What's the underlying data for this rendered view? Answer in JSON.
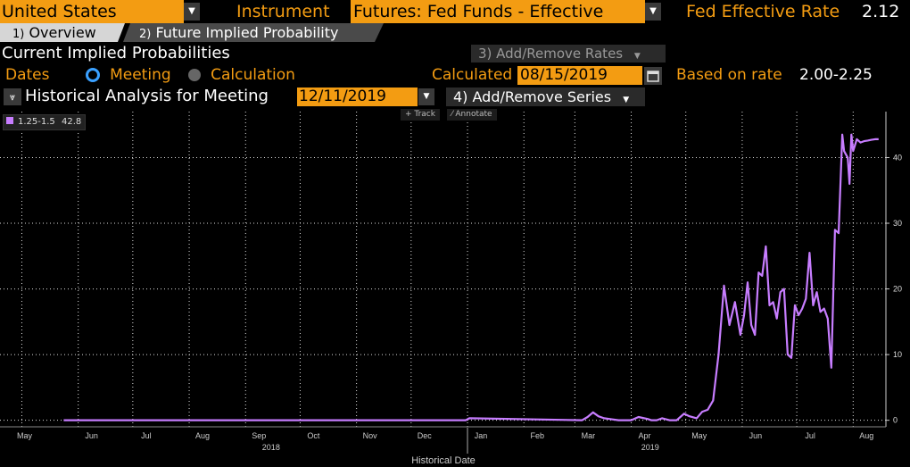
{
  "header": {
    "country": "United States",
    "instrument_label": "Instrument",
    "instrument": "Futures: Fed Funds - Effective",
    "rate_label": "Fed Effective Rate",
    "rate_value": "2.12"
  },
  "tabs": [
    {
      "num": "1)",
      "label": "Overview"
    },
    {
      "num": "2)",
      "label": "Future Implied Probability"
    }
  ],
  "section": {
    "title": "Current Implied Probabilities",
    "add_remove_rates": "3) Add/Remove Rates"
  },
  "dates_row": {
    "label": "Dates",
    "meeting": "Meeting",
    "calculation": "Calculation",
    "calculated_label": "Calculated",
    "calculated_date": "08/15/2019",
    "based_label": "Based on rate",
    "based_value": "2.00-2.25"
  },
  "historical": {
    "title": "Historical Analysis for Meeting",
    "meeting_date": "12/11/2019",
    "add_remove_series": "4) Add/Remove Series"
  },
  "toolbar": {
    "track": "Track",
    "annotate": "Annotate"
  },
  "colors": {
    "accent": "#f39c12",
    "series": "#c77dff",
    "background": "#000000"
  },
  "chart_data": {
    "type": "line",
    "xlabel": "Historical Date",
    "ylim": [
      -1,
      47
    ],
    "yticks": [
      0,
      10,
      20,
      30,
      40
    ],
    "grid": true,
    "x_ticks": [
      "May",
      "Jun",
      "Jul",
      "Aug",
      "Sep",
      "Oct",
      "Nov",
      "Dec",
      "Jan",
      "Feb",
      "Mar",
      "Apr",
      "May",
      "Jun",
      "Jul",
      "Aug"
    ],
    "year_labels": [
      "2018",
      "2019"
    ],
    "legend_placement": "top-left",
    "series": [
      {
        "name": "1.25-1.5",
        "last": "42.8",
        "x": [
          "2018-05-24",
          "2018-12-31",
          "2019-01-02",
          "2019-03-05",
          "2019-03-08",
          "2019-03-11",
          "2019-03-14",
          "2019-03-17",
          "2019-03-20",
          "2019-03-25",
          "2019-04-01",
          "2019-04-05",
          "2019-04-10",
          "2019-04-12",
          "2019-04-15",
          "2019-04-18",
          "2019-04-22",
          "2019-04-26",
          "2019-04-30",
          "2019-05-03",
          "2019-05-07",
          "2019-05-10",
          "2019-05-13",
          "2019-05-16",
          "2019-05-19",
          "2019-05-22",
          "2019-05-25",
          "2019-05-28",
          "2019-05-31",
          "2019-06-02",
          "2019-06-04",
          "2019-06-06",
          "2019-06-08",
          "2019-06-10",
          "2019-06-12",
          "2019-06-14",
          "2019-06-16",
          "2019-06-18",
          "2019-06-20",
          "2019-06-22",
          "2019-06-24",
          "2019-06-26",
          "2019-06-28",
          "2019-06-30",
          "2019-07-02",
          "2019-07-04",
          "2019-07-06",
          "2019-07-08",
          "2019-07-10",
          "2019-07-12",
          "2019-07-14",
          "2019-07-16",
          "2019-07-18",
          "2019-07-20",
          "2019-07-22",
          "2019-07-24",
          "2019-07-26",
          "2019-07-27",
          "2019-07-28",
          "2019-07-29",
          "2019-07-30",
          "2019-07-31",
          "2019-08-01",
          "2019-08-03",
          "2019-08-05",
          "2019-08-07",
          "2019-08-09",
          "2019-08-11",
          "2019-08-13",
          "2019-08-15"
        ],
        "y": [
          0,
          0,
          0.3,
          0,
          0.5,
          1.2,
          0.6,
          0.3,
          0.2,
          0,
          0,
          0.5,
          0.2,
          0,
          0,
          0.3,
          0,
          0,
          1,
          0.6,
          0.3,
          1.3,
          1.6,
          3,
          10,
          20.5,
          14.5,
          18,
          13,
          16,
          21,
          14.5,
          13,
          22.5,
          22,
          26.5,
          17.5,
          18,
          15.5,
          19.5,
          20,
          10,
          9.5,
          17.5,
          16,
          17,
          18.5,
          25.5,
          17.5,
          19.5,
          16.5,
          17,
          15.5,
          8,
          29,
          28.5,
          43.5,
          41,
          40.5,
          40,
          36,
          43.5,
          41,
          42.8,
          42.3,
          42.5,
          42.6,
          42.7,
          42.8,
          42.8
        ]
      }
    ]
  }
}
